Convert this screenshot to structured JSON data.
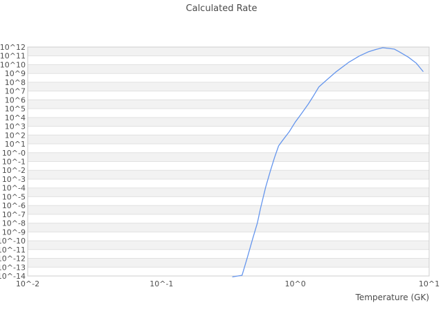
{
  "chart": {
    "title": "Calculated Rate",
    "xlabel": "Temperature (GK)"
  },
  "chart_data": {
    "type": "line",
    "title": "Calculated Rate",
    "xlabel": "Temperature (GK)",
    "ylabel": "",
    "x_scale": "log",
    "y_scale": "log",
    "xlim": [
      0.01,
      10
    ],
    "ylim": [
      1e-14,
      1000000000000.0
    ],
    "x_tick_labels": [
      "10^-2",
      "10^-1",
      "10^0",
      "10^1"
    ],
    "x_tick_exponents": [
      -2,
      -1,
      0,
      1
    ],
    "y_tick_labels": [
      "10^12",
      "10^11",
      "10^10",
      "10^9",
      "10^8",
      "10^7",
      "10^6",
      "10^5",
      "10^4",
      "10^3",
      "10^2",
      "10^1",
      "10^-0",
      "10^-1",
      "10^-2",
      "10^-3",
      "10^-4",
      "10^-5",
      "10^-6",
      "10^-7",
      "10^-8",
      "10^-9",
      "10^-10",
      "10^-11",
      "10^-12",
      "10^-13",
      "10^-14"
    ],
    "y_tick_exponent_top": 12,
    "y_tick_exponent_bottom": -14,
    "grid": "horizontal-gridlines-with-alternating-bands",
    "legend": "none",
    "series": [
      {
        "name": "calculated-rate",
        "color": "#6495ed",
        "x": [
          0.34,
          0.4,
          0.44,
          0.48,
          0.52,
          0.55,
          0.6,
          0.65,
          0.7,
          0.75,
          0.8,
          0.9,
          1.0,
          1.1,
          1.25,
          1.35,
          1.5,
          1.75,
          2.0,
          2.5,
          3.0,
          3.5,
          4.0,
          4.5,
          5.0,
          5.5,
          6.0,
          7.0,
          8.0,
          9.0
        ],
        "y": [
          8e-15,
          1.2e-14,
          1.6e-12,
          1.7e-10,
          1e-08,
          5.2e-07,
          0.00012,
          0.008,
          0.3,
          6.0,
          23,
          240,
          3100.0,
          22000.0,
          340000.0,
          2100000.0,
          30000000.0,
          240000000.0,
          1400000000.0,
          18000000000.0,
          94000000000.0,
          280000000000.0,
          530000000000.0,
          830000000000.0,
          700000000000.0,
          580000000000.0,
          280000000000.0,
          70000000000.0,
          15000000000.0,
          1700000000.0
        ]
      }
    ]
  },
  "colors": {
    "background": "#ffffff",
    "band": "#f2f2f2",
    "gridline": "#e0e0e0",
    "border": "#cccccc",
    "line": "#6495ed",
    "title_text": "#4a4a4a",
    "tick_text": "#4d4d4d"
  }
}
